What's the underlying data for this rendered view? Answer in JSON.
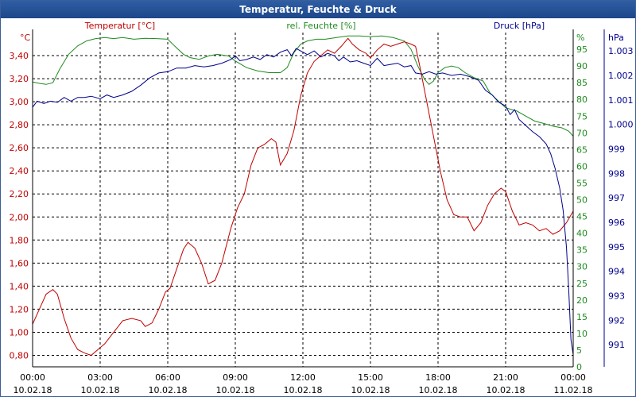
{
  "window": {
    "title": "Temperatur, Feuchte & Druck"
  },
  "colors": {
    "temperature": "#c00000",
    "humidity": "#1e8a1e",
    "pressure": "#00008b",
    "grid": "#000000",
    "text": "#000000"
  },
  "chart_data": {
    "type": "line",
    "title": "Temperatur, Feuchte & Druck",
    "grid": true,
    "x_ticks": [
      {
        "time": "00:00",
        "date": "10.02.18"
      },
      {
        "time": "03:00",
        "date": "10.02.18"
      },
      {
        "time": "06:00",
        "date": "10.02.18"
      },
      {
        "time": "09:00",
        "date": "10.02.18"
      },
      {
        "time": "12:00",
        "date": "10.02.18"
      },
      {
        "time": "15:00",
        "date": "10.02.18"
      },
      {
        "time": "18:00",
        "date": "10.02.18"
      },
      {
        "time": "21:00",
        "date": "10.02.18"
      },
      {
        "time": "00:00",
        "date": "11.02.18"
      }
    ],
    "x_range_hours": [
      0,
      24
    ],
    "axes": {
      "temperature": {
        "label": "Temperatur [°C]",
        "unit": "°C",
        "range": [
          0.7,
          3.6
        ],
        "ticks": [
          "0,80",
          "1,00",
          "1,20",
          "1,40",
          "1,60",
          "1,80",
          "2,00",
          "2,20",
          "2,40",
          "2,60",
          "2,80",
          "3,00",
          "3,20",
          "3,40"
        ]
      },
      "humidity": {
        "label": "rel. Feuchte [%]",
        "unit": "%",
        "range": [
          0,
          100
        ],
        "ticks": [
          "0",
          "5",
          "10",
          "15",
          "20",
          "25",
          "30",
          "35",
          "40",
          "45",
          "50",
          "55",
          "60",
          "65",
          "70",
          "75",
          "80",
          "85",
          "90",
          "95"
        ]
      },
      "pressure": {
        "label": "Druck [hPa]",
        "unit": "hPa",
        "range": [
          990.1,
          1003.75
        ],
        "ticks": [
          "991",
          "992",
          "993",
          "994",
          "995",
          "996",
          "997",
          "998",
          "999",
          "1.000",
          "1.001",
          "1.002",
          "1.003"
        ]
      }
    },
    "series": [
      {
        "name": "Temperatur [°C]",
        "axis": "temperature",
        "points": [
          [
            0,
            1.07
          ],
          [
            0.3,
            1.2
          ],
          [
            0.6,
            1.33
          ],
          [
            0.9,
            1.37
          ],
          [
            1.1,
            1.33
          ],
          [
            1.4,
            1.12
          ],
          [
            1.7,
            0.95
          ],
          [
            2.0,
            0.85
          ],
          [
            2.3,
            0.82
          ],
          [
            2.6,
            0.8
          ],
          [
            2.9,
            0.85
          ],
          [
            3.2,
            0.9
          ],
          [
            3.6,
            1.0
          ],
          [
            4.0,
            1.1
          ],
          [
            4.4,
            1.12
          ],
          [
            4.8,
            1.1
          ],
          [
            5.0,
            1.05
          ],
          [
            5.3,
            1.08
          ],
          [
            5.6,
            1.2
          ],
          [
            5.9,
            1.35
          ],
          [
            6.1,
            1.38
          ],
          [
            6.4,
            1.55
          ],
          [
            6.7,
            1.72
          ],
          [
            6.9,
            1.78
          ],
          [
            7.2,
            1.73
          ],
          [
            7.5,
            1.6
          ],
          [
            7.8,
            1.42
          ],
          [
            8.1,
            1.45
          ],
          [
            8.4,
            1.6
          ],
          [
            8.8,
            1.9
          ],
          [
            9.1,
            2.08
          ],
          [
            9.4,
            2.2
          ],
          [
            9.7,
            2.45
          ],
          [
            10.0,
            2.6
          ],
          [
            10.3,
            2.63
          ],
          [
            10.6,
            2.68
          ],
          [
            10.8,
            2.65
          ],
          [
            11.0,
            2.45
          ],
          [
            11.3,
            2.55
          ],
          [
            11.6,
            2.75
          ],
          [
            11.9,
            3.05
          ],
          [
            12.2,
            3.25
          ],
          [
            12.5,
            3.35
          ],
          [
            12.8,
            3.4
          ],
          [
            13.1,
            3.45
          ],
          [
            13.4,
            3.42
          ],
          [
            13.7,
            3.48
          ],
          [
            14.0,
            3.55
          ],
          [
            14.2,
            3.5
          ],
          [
            14.5,
            3.45
          ],
          [
            14.8,
            3.42
          ],
          [
            15.0,
            3.38
          ],
          [
            15.3,
            3.45
          ],
          [
            15.6,
            3.5
          ],
          [
            15.9,
            3.48
          ],
          [
            16.2,
            3.5
          ],
          [
            16.5,
            3.52
          ],
          [
            16.8,
            3.5
          ],
          [
            17.0,
            3.48
          ],
          [
            17.2,
            3.3
          ],
          [
            17.5,
            3.0
          ],
          [
            17.8,
            2.7
          ],
          [
            18.1,
            2.4
          ],
          [
            18.4,
            2.15
          ],
          [
            18.7,
            2.02
          ],
          [
            19.0,
            2.0
          ],
          [
            19.3,
            2.0
          ],
          [
            19.6,
            1.88
          ],
          [
            19.9,
            1.95
          ],
          [
            20.2,
            2.1
          ],
          [
            20.5,
            2.2
          ],
          [
            20.8,
            2.25
          ],
          [
            21.0,
            2.22
          ],
          [
            21.3,
            2.05
          ],
          [
            21.6,
            1.93
          ],
          [
            21.9,
            1.95
          ],
          [
            22.2,
            1.93
          ],
          [
            22.5,
            1.88
          ],
          [
            22.8,
            1.9
          ],
          [
            23.1,
            1.85
          ],
          [
            23.4,
            1.88
          ],
          [
            23.7,
            1.95
          ],
          [
            24.0,
            2.05
          ]
        ]
      },
      {
        "name": "rel. Feuchte [%]",
        "axis": "humidity",
        "points": [
          [
            0,
            85.2
          ],
          [
            0.3,
            84.8
          ],
          [
            0.6,
            84.5
          ],
          [
            0.9,
            85.0
          ],
          [
            1.2,
            89.0
          ],
          [
            1.6,
            93.5
          ],
          [
            2.0,
            96.0
          ],
          [
            2.4,
            97.5
          ],
          [
            2.8,
            98.2
          ],
          [
            3.2,
            98.5
          ],
          [
            3.6,
            98.2
          ],
          [
            4.0,
            98.5
          ],
          [
            4.5,
            98.0
          ],
          [
            5.0,
            98.3
          ],
          [
            5.5,
            98.2
          ],
          [
            6.0,
            98.0
          ],
          [
            6.3,
            96.0
          ],
          [
            6.7,
            93.5
          ],
          [
            7.0,
            92.5
          ],
          [
            7.4,
            92.0
          ],
          [
            7.8,
            93.0
          ],
          [
            8.2,
            93.5
          ],
          [
            8.7,
            93.0
          ],
          [
            9.0,
            91.5
          ],
          [
            9.5,
            89.5
          ],
          [
            10.0,
            88.5
          ],
          [
            10.5,
            88.0
          ],
          [
            11.0,
            88.0
          ],
          [
            11.3,
            89.5
          ],
          [
            11.6,
            94.0
          ],
          [
            11.9,
            96.5
          ],
          [
            12.2,
            97.5
          ],
          [
            12.6,
            98.0
          ],
          [
            13.0,
            98.0
          ],
          [
            13.5,
            98.5
          ],
          [
            14.0,
            99.0
          ],
          [
            14.5,
            99.0
          ],
          [
            15.0,
            98.8
          ],
          [
            15.5,
            99.0
          ],
          [
            16.0,
            98.5
          ],
          [
            16.5,
            97.5
          ],
          [
            16.8,
            95.0
          ],
          [
            17.1,
            90.0
          ],
          [
            17.4,
            86.0
          ],
          [
            17.6,
            84.5
          ],
          [
            17.8,
            85.5
          ],
          [
            18.0,
            88.0
          ],
          [
            18.3,
            89.5
          ],
          [
            18.6,
            90.0
          ],
          [
            18.9,
            89.5
          ],
          [
            19.2,
            88.0
          ],
          [
            19.6,
            86.5
          ],
          [
            20.0,
            85.5
          ],
          [
            20.3,
            82.0
          ],
          [
            20.6,
            80.0
          ],
          [
            21.0,
            77.5
          ],
          [
            21.5,
            76.5
          ],
          [
            21.9,
            75.0
          ],
          [
            22.3,
            73.5
          ],
          [
            22.7,
            72.8
          ],
          [
            23.1,
            72.0
          ],
          [
            23.5,
            71.5
          ],
          [
            23.8,
            70.5
          ],
          [
            24.0,
            69.0
          ]
        ]
      },
      {
        "name": "Druck [hPa]",
        "axis": "pressure",
        "points": [
          [
            0,
            1000.7
          ],
          [
            0.2,
            1000.95
          ],
          [
            0.5,
            1000.85
          ],
          [
            0.8,
            1000.95
          ],
          [
            1.1,
            1000.9
          ],
          [
            1.4,
            1001.1
          ],
          [
            1.7,
            1000.95
          ],
          [
            2.0,
            1001.1
          ],
          [
            2.3,
            1001.1
          ],
          [
            2.6,
            1001.15
          ],
          [
            3.0,
            1001.05
          ],
          [
            3.3,
            1001.2
          ],
          [
            3.6,
            1001.1
          ],
          [
            4.0,
            1001.2
          ],
          [
            4.4,
            1001.35
          ],
          [
            4.8,
            1001.6
          ],
          [
            5.2,
            1001.9
          ],
          [
            5.6,
            1002.1
          ],
          [
            6.0,
            1002.15
          ],
          [
            6.4,
            1002.3
          ],
          [
            6.8,
            1002.3
          ],
          [
            7.2,
            1002.4
          ],
          [
            7.6,
            1002.35
          ],
          [
            8.0,
            1002.4
          ],
          [
            8.4,
            1002.5
          ],
          [
            8.8,
            1002.65
          ],
          [
            9.0,
            1002.8
          ],
          [
            9.2,
            1002.6
          ],
          [
            9.5,
            1002.65
          ],
          [
            9.8,
            1002.75
          ],
          [
            10.1,
            1002.65
          ],
          [
            10.4,
            1002.85
          ],
          [
            10.7,
            1002.75
          ],
          [
            11.0,
            1002.95
          ],
          [
            11.3,
            1003.05
          ],
          [
            11.5,
            1002.8
          ],
          [
            11.7,
            1003.1
          ],
          [
            12.0,
            1002.95
          ],
          [
            12.2,
            1002.85
          ],
          [
            12.5,
            1003.0
          ],
          [
            12.8,
            1002.75
          ],
          [
            13.1,
            1002.9
          ],
          [
            13.4,
            1002.8
          ],
          [
            13.6,
            1002.6
          ],
          [
            13.8,
            1002.75
          ],
          [
            14.1,
            1002.55
          ],
          [
            14.4,
            1002.6
          ],
          [
            14.7,
            1002.5
          ],
          [
            15.0,
            1002.4
          ],
          [
            15.3,
            1002.7
          ],
          [
            15.6,
            1002.4
          ],
          [
            15.9,
            1002.45
          ],
          [
            16.2,
            1002.5
          ],
          [
            16.5,
            1002.35
          ],
          [
            16.8,
            1002.4
          ],
          [
            17.0,
            1002.1
          ],
          [
            17.3,
            1002.05
          ],
          [
            17.6,
            1002.15
          ],
          [
            17.9,
            1002.05
          ],
          [
            18.2,
            1002.1
          ],
          [
            18.6,
            1002.0
          ],
          [
            19.0,
            1002.05
          ],
          [
            19.4,
            1001.95
          ],
          [
            19.8,
            1001.8
          ],
          [
            20.1,
            1001.4
          ],
          [
            20.4,
            1001.2
          ],
          [
            20.7,
            1000.9
          ],
          [
            21.0,
            1000.75
          ],
          [
            21.2,
            1000.4
          ],
          [
            21.4,
            1000.6
          ],
          [
            21.6,
            1000.2
          ],
          [
            21.9,
            999.95
          ],
          [
            22.2,
            999.7
          ],
          [
            22.5,
            999.5
          ],
          [
            22.8,
            999.2
          ],
          [
            23.0,
            998.8
          ],
          [
            23.2,
            998.2
          ],
          [
            23.4,
            997.4
          ],
          [
            23.55,
            996.5
          ],
          [
            23.7,
            995.0
          ],
          [
            23.8,
            993.3
          ],
          [
            23.9,
            991.2
          ],
          [
            24.0,
            990.6
          ]
        ]
      }
    ]
  }
}
